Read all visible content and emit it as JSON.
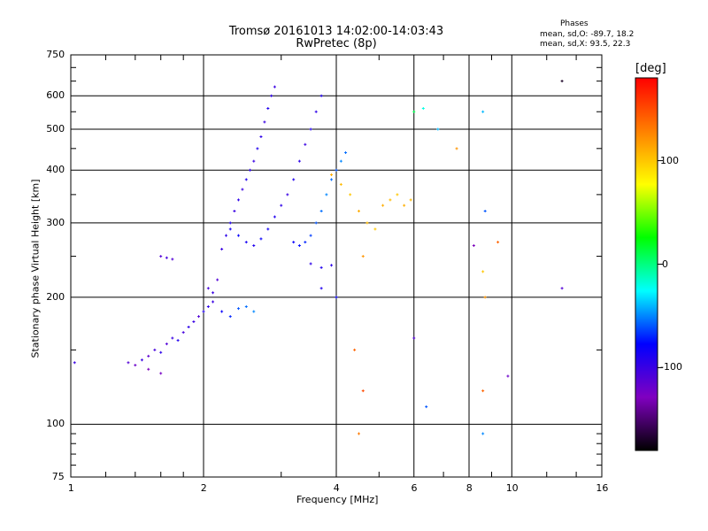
{
  "chart_data": {
    "type": "scatter",
    "title": "Tromsø 20161013 14:02:00-14:03:43",
    "subtitle": "RwPretec (8p)",
    "xlabel": "Frequency [MHz]",
    "ylabel": "Stationary phase Virtual Height [km]",
    "x_scale": "log",
    "y_scale": "log",
    "xlim": [
      1,
      16
    ],
    "ylim": [
      75,
      750
    ],
    "x_ticks": [
      "1",
      "2",
      "4",
      "6",
      "8",
      "10",
      "16"
    ],
    "y_ticks": [
      "75",
      "100",
      "200",
      "300",
      "400",
      "500",
      "600",
      "750"
    ],
    "grid": true,
    "phases_box": {
      "title": "Phases",
      "line_o": "mean, sd,O: -89.7, 18.2",
      "line_x": "mean, sd,X:  93.5, 22.3"
    },
    "colorbar": {
      "label": "[deg]",
      "range": [
        -180,
        180
      ],
      "ticks": [
        "100",
        "0",
        "-100"
      ],
      "colors": [
        "#ff0000",
        "#ff8000",
        "#ffff00",
        "#00ff00",
        "#00ffff",
        "#0000ff",
        "#8000c0",
        "#000000"
      ]
    },
    "series": [
      {
        "points": [
          [
            1.35,
            140,
            -110
          ],
          [
            1.4,
            138,
            -120
          ],
          [
            1.45,
            142,
            -100
          ],
          [
            1.5,
            145,
            -115
          ],
          [
            1.55,
            150,
            -105
          ],
          [
            1.6,
            148,
            -95
          ],
          [
            1.65,
            155,
            -110
          ],
          [
            1.7,
            160,
            -100
          ],
          [
            1.75,
            158,
            -90
          ],
          [
            1.8,
            165,
            -105
          ],
          [
            1.85,
            170,
            -95
          ],
          [
            1.9,
            175,
            -100
          ],
          [
            1.95,
            180,
            -110
          ],
          [
            2.0,
            185,
            -90
          ],
          [
            2.05,
            190,
            -95
          ],
          [
            2.1,
            195,
            -100
          ],
          [
            2.2,
            185,
            -80
          ],
          [
            2.3,
            180,
            -70
          ],
          [
            2.4,
            188,
            -60
          ],
          [
            2.5,
            190,
            -55
          ],
          [
            2.6,
            185,
            -50
          ],
          [
            1.6,
            250,
            -110
          ],
          [
            1.65,
            248,
            -105
          ],
          [
            1.7,
            246,
            -110
          ],
          [
            2.05,
            210,
            -105
          ],
          [
            2.1,
            205,
            -100
          ],
          [
            2.15,
            220,
            -110
          ],
          [
            1.5,
            135,
            -130
          ],
          [
            1.6,
            132,
            -125
          ],
          [
            1.02,
            140,
            -100
          ],
          [
            2.2,
            260,
            -100
          ],
          [
            2.25,
            280,
            -95
          ],
          [
            2.3,
            300,
            -90
          ],
          [
            2.35,
            320,
            -100
          ],
          [
            2.4,
            340,
            -95
          ],
          [
            2.45,
            360,
            -100
          ],
          [
            2.5,
            380,
            -90
          ],
          [
            2.55,
            400,
            -95
          ],
          [
            2.6,
            420,
            -100
          ],
          [
            2.65,
            450,
            -90
          ],
          [
            2.7,
            480,
            -95
          ],
          [
            2.75,
            520,
            -100
          ],
          [
            2.8,
            560,
            -90
          ],
          [
            2.85,
            600,
            -95
          ],
          [
            2.9,
            630,
            -100
          ],
          [
            2.3,
            290,
            -85
          ],
          [
            2.4,
            280,
            -80
          ],
          [
            2.5,
            270,
            -85
          ],
          [
            2.6,
            265,
            -90
          ],
          [
            2.7,
            275,
            -80
          ],
          [
            2.8,
            290,
            -85
          ],
          [
            2.9,
            310,
            -90
          ],
          [
            3.0,
            330,
            -95
          ],
          [
            3.1,
            350,
            -100
          ],
          [
            3.2,
            380,
            -90
          ],
          [
            3.3,
            420,
            -95
          ],
          [
            3.4,
            460,
            -100
          ],
          [
            3.5,
            500,
            -90
          ],
          [
            3.6,
            550,
            -95
          ],
          [
            3.7,
            600,
            -90
          ],
          [
            3.2,
            270,
            -80
          ],
          [
            3.3,
            265,
            -75
          ],
          [
            3.4,
            270,
            -70
          ],
          [
            3.5,
            280,
            -65
          ],
          [
            3.6,
            300,
            -60
          ],
          [
            3.7,
            320,
            -55
          ],
          [
            3.8,
            350,
            -50
          ],
          [
            3.9,
            380,
            -55
          ],
          [
            4.0,
            400,
            -60
          ],
          [
            4.1,
            420,
            -50
          ],
          [
            4.2,
            440,
            -55
          ],
          [
            3.5,
            240,
            -95
          ],
          [
            3.7,
            235,
            -90
          ],
          [
            3.9,
            238,
            -95
          ],
          [
            4.0,
            200,
            -80
          ],
          [
            3.7,
            210,
            -90
          ],
          [
            3.9,
            390,
            110
          ],
          [
            4.1,
            370,
            105
          ],
          [
            4.3,
            350,
            100
          ],
          [
            4.5,
            320,
            110
          ],
          [
            4.7,
            300,
            105
          ],
          [
            4.9,
            290,
            100
          ],
          [
            5.1,
            330,
            110
          ],
          [
            5.3,
            340,
            105
          ],
          [
            5.5,
            350,
            100
          ],
          [
            5.7,
            330,
            110
          ],
          [
            5.9,
            340,
            105
          ],
          [
            4.4,
            150,
            140
          ],
          [
            4.6,
            120,
            150
          ],
          [
            4.5,
            95,
            130
          ],
          [
            4.6,
            250,
            120
          ],
          [
            6.0,
            550,
            10
          ],
          [
            6.3,
            560,
            -20
          ],
          [
            6.8,
            500,
            -40
          ],
          [
            7.5,
            450,
            120
          ],
          [
            8.6,
            550,
            -40
          ],
          [
            8.7,
            320,
            -60
          ],
          [
            8.6,
            230,
            100
          ],
          [
            8.7,
            200,
            120
          ],
          [
            8.6,
            120,
            140
          ],
          [
            8.6,
            95,
            -50
          ],
          [
            9.3,
            270,
            140
          ],
          [
            9.8,
            130,
            -120
          ],
          [
            13.0,
            210,
            -110
          ],
          [
            13.0,
            650,
            -170
          ],
          [
            6.4,
            110,
            -60
          ],
          [
            6.0,
            160,
            -110
          ],
          [
            8.2,
            265,
            -130
          ]
        ]
      }
    ]
  }
}
